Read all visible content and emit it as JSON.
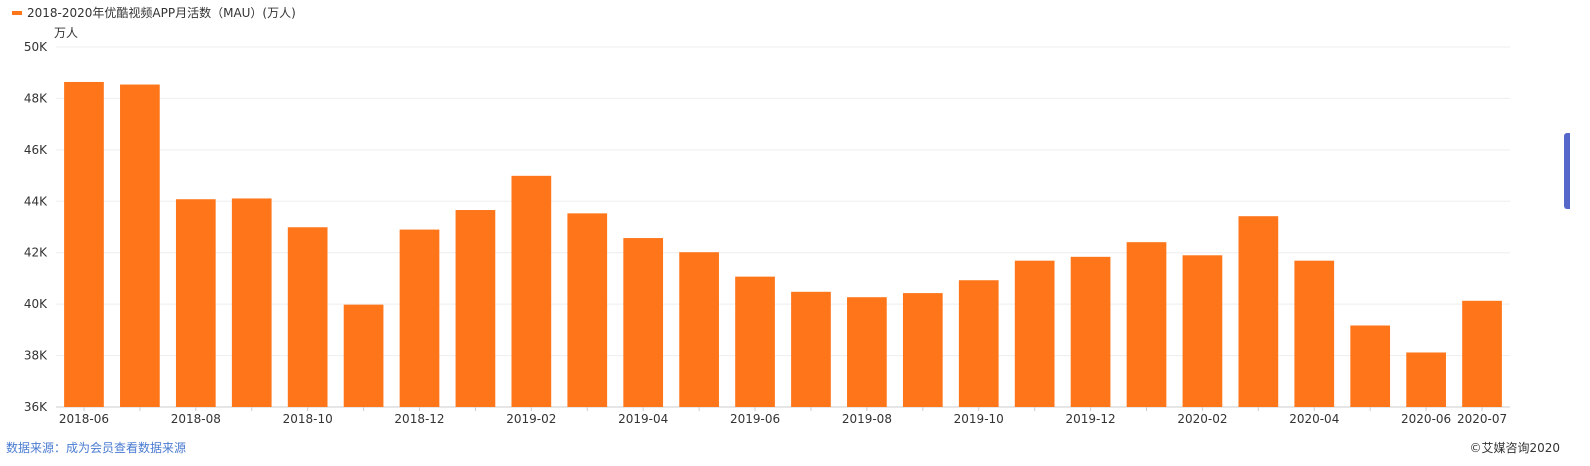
{
  "legend": {
    "label": "2018-2020年优酷视频APP月活数（MAU）(万人)"
  },
  "unit_label": "万人",
  "footer": {
    "source_link": "数据来源：成为会员查看数据来源",
    "copyright": "©艾媒咨询2020"
  },
  "colors": {
    "bar": "#ff751a",
    "grid": "#eeeeee",
    "axis_text": "#333333",
    "link": "#4a7bd0"
  },
  "chart_data": {
    "type": "bar",
    "ylabel": "万人",
    "ylim": [
      36000,
      50000
    ],
    "yticks": [
      36000,
      38000,
      40000,
      42000,
      44000,
      46000,
      48000,
      50000
    ],
    "ytick_labels": [
      "36K",
      "38K",
      "40K",
      "42K",
      "44K",
      "46K",
      "48K",
      "50K"
    ],
    "grid": true,
    "legend_position": "top-left",
    "categories": [
      "2018-06",
      "2018-07",
      "2018-08",
      "2018-09",
      "2018-10",
      "2018-11",
      "2018-12",
      "2019-01",
      "2019-02",
      "2019-03",
      "2019-04",
      "2019-05",
      "2019-06",
      "2019-07",
      "2019-08",
      "2019-09",
      "2019-10",
      "2019-11",
      "2019-12",
      "2020-01",
      "2020-02",
      "2020-03",
      "2020-04",
      "2020-05",
      "2020-06",
      "2020-07"
    ],
    "visible_x_labels": [
      "2018-06",
      "2018-08",
      "2018-10",
      "2018-12",
      "2019-02",
      "2019-04",
      "2019-06",
      "2019-08",
      "2019-10",
      "2019-12",
      "2020-02",
      "2020-04",
      "2020-06",
      "2020-07"
    ],
    "series": [
      {
        "name": "2018-2020年优酷视频APP月活数（MAU）(万人)",
        "values": [
          48640,
          48540,
          44080,
          44110,
          42990,
          39980,
          42900,
          43660,
          44990,
          43530,
          42570,
          42020,
          41070,
          40480,
          40270,
          40430,
          40930,
          41690,
          41840,
          42410,
          41900,
          43420,
          41690,
          39170,
          38120,
          40130
        ]
      }
    ]
  }
}
